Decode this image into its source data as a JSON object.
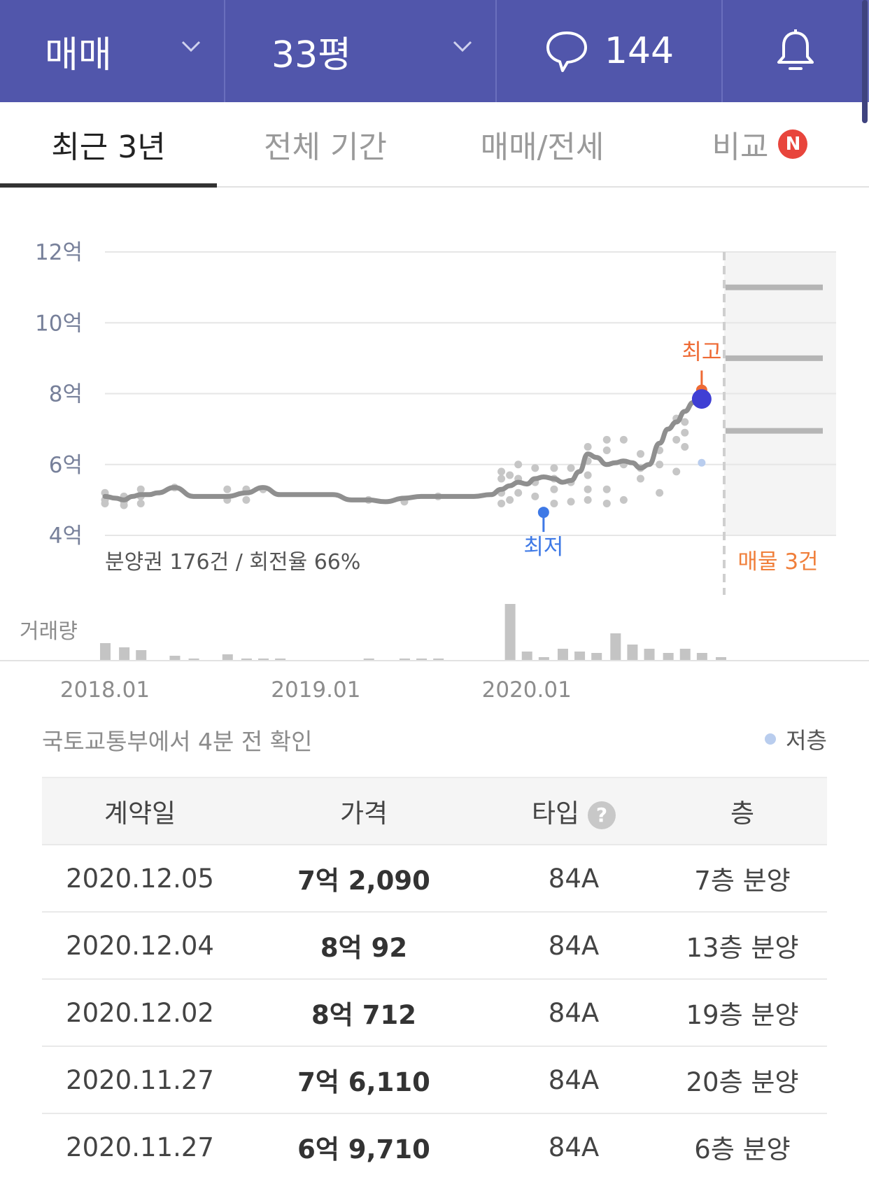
{
  "header": {
    "deal_type": "매매",
    "size": "33평",
    "talk_count": "144"
  },
  "tabs": [
    {
      "label": "최근 3년",
      "active": true
    },
    {
      "label": "전체 기간",
      "active": false
    },
    {
      "label": "매매/전세",
      "active": false
    },
    {
      "label": "비교",
      "active": false,
      "badge": "N"
    }
  ],
  "chart_data": {
    "type": "line",
    "ylim": [
      4,
      12
    ],
    "y_ticks": [
      "4억",
      "6억",
      "8억",
      "10억",
      "12억"
    ],
    "x_ticks": [
      "2018.01",
      "2019.01",
      "2020.01"
    ],
    "x_tick_positions": [
      2018.0,
      2019.0,
      2020.0
    ],
    "xlim": [
      2018.0,
      2020.92
    ],
    "series": [
      {
        "x": [
          2018.0,
          2018.05,
          2018.09,
          2018.13,
          2018.17,
          2018.21,
          2018.25,
          2018.33,
          2018.42,
          2018.5,
          2018.58,
          2018.67,
          2018.75,
          2018.83,
          2018.92,
          2019.0,
          2019.08,
          2019.17,
          2019.25,
          2019.33,
          2019.42,
          2019.5,
          2019.58,
          2019.67,
          2019.75,
          2019.83,
          2019.88,
          2019.92,
          2019.96,
          2020.0,
          2020.04,
          2020.08,
          2020.13,
          2020.17,
          2020.21,
          2020.25,
          2020.29,
          2020.33,
          2020.38,
          2020.42,
          2020.46,
          2020.5,
          2020.54,
          2020.58,
          2020.63,
          2020.67,
          2020.71,
          2020.75,
          2020.79,
          2020.83
        ],
        "values": [
          5.1,
          5.05,
          5.0,
          5.1,
          5.15,
          5.15,
          5.2,
          5.35,
          5.1,
          5.1,
          5.1,
          5.2,
          5.35,
          5.15,
          5.15,
          5.15,
          5.15,
          5.0,
          5.0,
          4.95,
          5.05,
          5.1,
          5.1,
          5.1,
          5.1,
          5.15,
          5.3,
          5.4,
          5.5,
          5.45,
          5.6,
          5.65,
          5.6,
          5.5,
          5.55,
          5.8,
          6.3,
          6.2,
          6.0,
          6.05,
          6.1,
          6.05,
          5.9,
          6.0,
          6.6,
          7.0,
          7.2,
          7.5,
          7.75,
          7.8
        ]
      }
    ],
    "scatter": {
      "x": [
        2018.0,
        2018.0,
        2018.0,
        2018.09,
        2018.09,
        2018.09,
        2018.17,
        2018.17,
        2018.17,
        2018.33,
        2018.58,
        2018.58,
        2018.67,
        2018.67,
        2018.75,
        2019.25,
        2019.42,
        2019.58,
        2019.88,
        2019.88,
        2019.88,
        2019.88,
        2019.92,
        2019.92,
        2019.96,
        2019.96,
        2019.96,
        2020.04,
        2020.04,
        2020.04,
        2020.13,
        2020.13,
        2020.13,
        2020.13,
        2020.21,
        2020.21,
        2020.21,
        2020.29,
        2020.29,
        2020.29,
        2020.29,
        2020.29,
        2020.38,
        2020.38,
        2020.38,
        2020.38,
        2020.46,
        2020.46,
        2020.46,
        2020.54,
        2020.54,
        2020.54,
        2020.63,
        2020.63,
        2020.63,
        2020.71,
        2020.71,
        2020.71,
        2020.75,
        2020.75,
        2020.75
      ],
      "values": [
        5.2,
        5.0,
        4.9,
        5.1,
        4.95,
        4.85,
        5.3,
        5.1,
        4.9,
        5.35,
        5.3,
        5.0,
        5.3,
        5.0,
        5.3,
        5.0,
        4.95,
        5.1,
        5.8,
        5.6,
        5.2,
        4.9,
        5.7,
        5.0,
        6.0,
        5.6,
        5.2,
        5.9,
        5.5,
        5.1,
        5.9,
        5.6,
        5.3,
        4.9,
        5.9,
        5.5,
        4.95,
        6.5,
        6.1,
        5.7,
        5.3,
        5.0,
        6.7,
        6.4,
        5.3,
        4.9,
        6.7,
        6.0,
        5.0,
        6.3,
        5.9,
        5.6,
        6.4,
        6.0,
        5.2,
        7.3,
        6.7,
        5.8,
        7.2,
        6.9,
        6.5
      ]
    },
    "low_floor_points": {
      "x": [
        2020.83
      ],
      "values": [
        6.05
      ]
    },
    "min_marker": {
      "x": 2020.08,
      "value": 4.65,
      "label": "최저"
    },
    "max_marker": {
      "x": 2020.83,
      "value": 8.1,
      "label": "최고"
    },
    "current_point": {
      "x": 2020.83,
      "value": 7.85
    },
    "listings": [
      11.0,
      9.0,
      6.95
    ],
    "listings_label": "매물 3건",
    "note": "분양권 176건 / 회전율 66%",
    "volume_label": "거래량",
    "volume": [
      {
        "x": 2018.0,
        "v": 12
      },
      {
        "x": 2018.09,
        "v": 9
      },
      {
        "x": 2018.17,
        "v": 7
      },
      {
        "x": 2018.33,
        "v": 3
      },
      {
        "x": 2018.42,
        "v": 1
      },
      {
        "x": 2018.58,
        "v": 4
      },
      {
        "x": 2018.67,
        "v": 1
      },
      {
        "x": 2018.75,
        "v": 1
      },
      {
        "x": 2018.83,
        "v": 1
      },
      {
        "x": 2019.25,
        "v": 1
      },
      {
        "x": 2019.42,
        "v": 1
      },
      {
        "x": 2019.5,
        "v": 1
      },
      {
        "x": 2019.58,
        "v": 1
      },
      {
        "x": 2019.92,
        "v": 40
      },
      {
        "x": 2020.0,
        "v": 6
      },
      {
        "x": 2020.08,
        "v": 2
      },
      {
        "x": 2020.17,
        "v": 8
      },
      {
        "x": 2020.25,
        "v": 6
      },
      {
        "x": 2020.33,
        "v": 5
      },
      {
        "x": 2020.42,
        "v": 19
      },
      {
        "x": 2020.5,
        "v": 11
      },
      {
        "x": 2020.58,
        "v": 8
      },
      {
        "x": 2020.67,
        "v": 5
      },
      {
        "x": 2020.75,
        "v": 8
      },
      {
        "x": 2020.83,
        "v": 5
      },
      {
        "x": 2020.92,
        "v": 2
      }
    ]
  },
  "source_text": "국토교통부에서 4분 전 확인",
  "legend_low_floor": "저층",
  "table": {
    "headers": [
      "계약일",
      "가격",
      "타입",
      "층"
    ],
    "help_icon": "?",
    "rows": [
      [
        "2020.12.05",
        "7억 2,090",
        "84A",
        "7층 분양"
      ],
      [
        "2020.12.04",
        "8억 92",
        "84A",
        "13층 분양"
      ],
      [
        "2020.12.02",
        "8억 712",
        "84A",
        "19층 분양"
      ],
      [
        "2020.11.27",
        "7억 6,110",
        "84A",
        "20층 분양"
      ],
      [
        "2020.11.27",
        "6억 9,710",
        "84A",
        "6층 분양"
      ]
    ]
  },
  "colors": {
    "header_bg": "#5156ab",
    "line": "#8f8f8f",
    "min_marker": "#3e79e6",
    "max_marker": "#ee6a34",
    "current_point": "#3f3fd4",
    "listing_text": "#f07f3b",
    "badge": "#e8453c"
  }
}
